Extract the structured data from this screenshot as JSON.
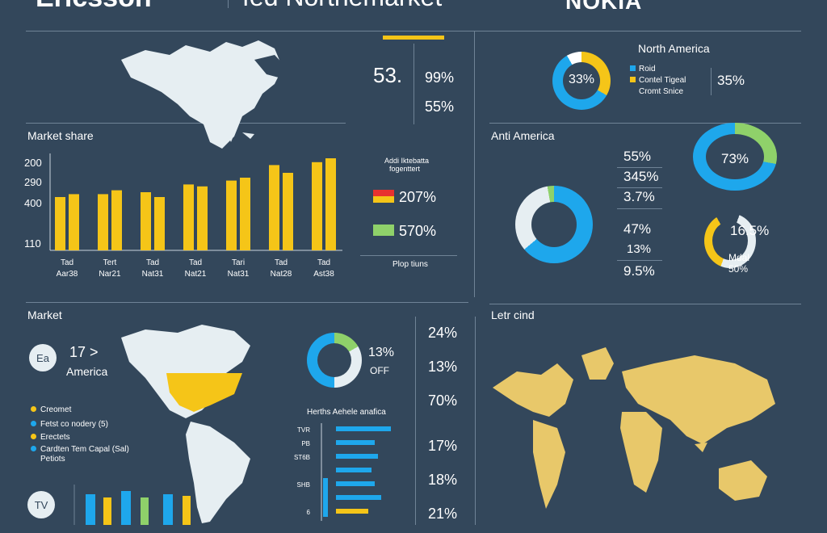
{
  "header": {
    "brand_left": "Ericsson",
    "title_partial": "fed Northemarket",
    "brand_right": "NOKIA"
  },
  "top_left": {
    "market_share_label": "Market share",
    "big_number": "53.",
    "pct_a": "99%",
    "pct_b": "55%"
  },
  "bar_legend": {
    "title_line1": "Addi Iktebatta",
    "title_line2": "fogenttert",
    "item1": "207%",
    "item2": "570%",
    "footer": "Plop tiuns"
  },
  "top_right": {
    "north_america_label": "North America",
    "donut1_label": "33%",
    "legend1": "Roid",
    "legend2": "Contel Tigeal",
    "legend3": "Cromt Snice",
    "pct_right": "35%"
  },
  "mid_right": {
    "title": "Anti America",
    "values": [
      "55%",
      "345%",
      "3.7%",
      "47%",
      "13%",
      "9.5%"
    ],
    "donut_big_label": "73%",
    "donut_small_label": "16.5%",
    "donut_small_sub1": "Mdal",
    "donut_small_sub2": "50%"
  },
  "bottom_left": {
    "market_label": "Market",
    "badge": "Ea",
    "number_line": "17 >",
    "america_label": "America",
    "legend": [
      "Creomet",
      "Fetst co nodery (5)",
      "Erectets",
      "Cardten Tem Capal (Sal)",
      "Petiots"
    ],
    "tv_badge": "TV"
  },
  "bottom_mid": {
    "donut_label": "13%",
    "donut_sub": "OFF",
    "pcts": [
      "24%",
      "13%",
      "70%",
      "17%",
      "18%",
      "21%"
    ],
    "hbar_title": "Herths Aehele anafica"
  },
  "bottom_right": {
    "title": "Letr cind"
  },
  "colors": {
    "background": "#33475b",
    "yellow": "#f5c518",
    "blue": "#1ea7ec",
    "green": "#8fd16a",
    "red": "#e8312f",
    "white": "#ffffff"
  },
  "chart_data": [
    {
      "type": "bar",
      "title": "Market share",
      "categories": [
        "Tad Aar38",
        "Tert Nar21",
        "Tad Nat31",
        "Tad Nat21",
        "Tari Nat31",
        "Tad Nat28",
        "Tad Ast38"
      ],
      "y_tick_labels": [
        "200",
        "290",
        "400",
        "110"
      ],
      "series": [
        {
          "values": [
            55,
            58,
            60,
            68,
            72,
            88,
            91
          ]
        },
        {
          "values": [
            58,
            62,
            55,
            66,
            75,
            80,
            95
          ]
        }
      ],
      "ylim": [
        0,
        100
      ],
      "grid": false
    },
    {
      "type": "pie",
      "title": "North America",
      "values": [
        33,
        67
      ],
      "center_label": "33%"
    },
    {
      "type": "pie",
      "values": [
        73,
        27
      ],
      "center_label": "73%"
    },
    {
      "type": "bar",
      "orientation": "horizontal",
      "title": "Herths Aehele anafica",
      "categories": [
        "TVR",
        "PB",
        "ST6B",
        "",
        "SHB",
        "",
        "6"
      ],
      "values": [
        85,
        60,
        65,
        55,
        60,
        70,
        50
      ]
    }
  ]
}
